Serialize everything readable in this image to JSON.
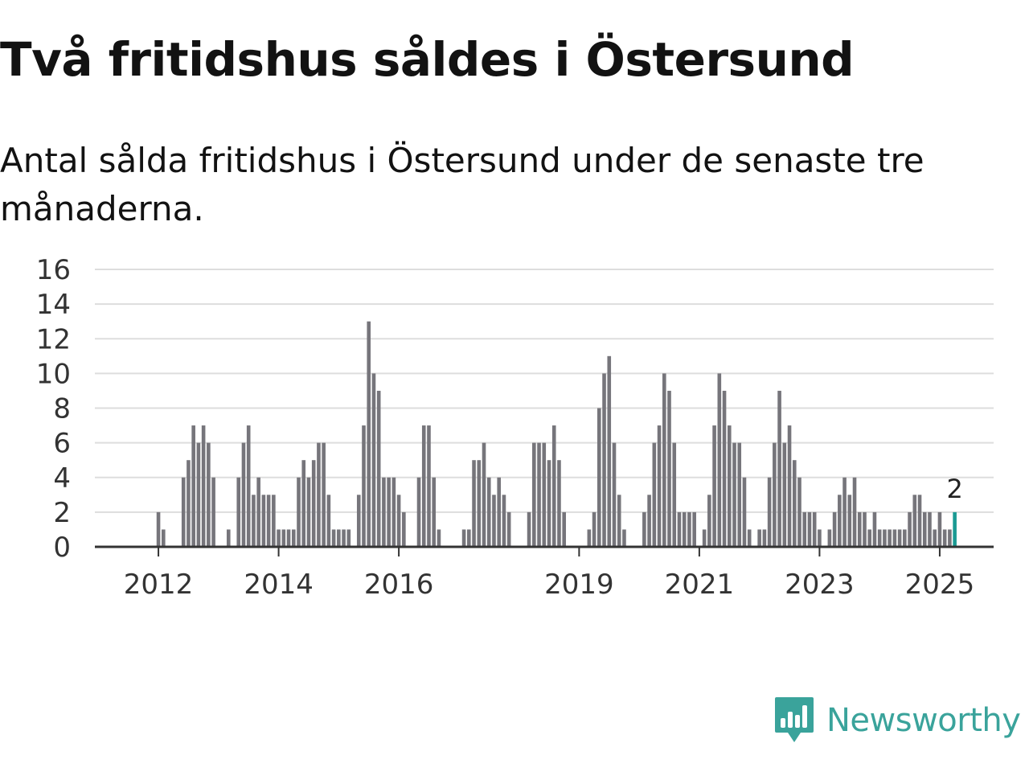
{
  "title": "Två fritidshus såldes i Östersund",
  "subtitle": "Antal sålda fritidshus i Östersund under de senaste tre månaderna.",
  "brand": {
    "name": "Newsworthy",
    "icon": "newsworthy-logo-icon",
    "color": "#3aa39b"
  },
  "colors": {
    "bar": "#76757b",
    "highlight": "#1a9a93"
  },
  "chart_data": {
    "type": "bar",
    "title": "Två fritidshus såldes i Östersund",
    "xlabel": "",
    "ylabel": "",
    "ylim": [
      0,
      16
    ],
    "yticks": [
      0,
      2,
      4,
      6,
      8,
      10,
      12,
      14,
      16
    ],
    "grid": true,
    "start": "2011-01",
    "xticks": [
      {
        "label": "2012",
        "category": "2012-01"
      },
      {
        "label": "2014",
        "category": "2014-01"
      },
      {
        "label": "2016",
        "category": "2016-01"
      },
      {
        "label": "2019",
        "category": "2019-01"
      },
      {
        "label": "2021",
        "category": "2021-01"
      },
      {
        "label": "2023",
        "category": "2023-01"
      },
      {
        "label": "2025",
        "category": "2025-01"
      }
    ],
    "values": [
      0,
      0,
      0,
      0,
      0,
      0,
      0,
      0,
      0,
      0,
      0,
      0,
      2,
      1,
      0,
      0,
      0,
      4,
      5,
      7,
      6,
      7,
      6,
      4,
      0,
      0,
      1,
      0,
      4,
      6,
      7,
      3,
      4,
      3,
      3,
      3,
      1,
      1,
      1,
      1,
      4,
      5,
      4,
      5,
      6,
      6,
      3,
      1,
      1,
      1,
      1,
      0,
      3,
      7,
      13,
      10,
      9,
      4,
      4,
      4,
      3,
      2,
      0,
      0,
      4,
      7,
      7,
      4,
      1,
      0,
      0,
      0,
      0,
      1,
      1,
      5,
      5,
      6,
      4,
      3,
      4,
      3,
      2,
      0,
      0,
      0,
      2,
      6,
      6,
      6,
      5,
      7,
      5,
      2,
      0,
      0,
      0,
      0,
      1,
      2,
      8,
      10,
      11,
      6,
      3,
      1,
      0,
      0,
      0,
      2,
      3,
      6,
      7,
      10,
      9,
      6,
      2,
      2,
      2,
      2,
      0,
      1,
      3,
      7,
      10,
      9,
      7,
      6,
      6,
      4,
      1,
      0,
      1,
      1,
      4,
      6,
      9,
      6,
      7,
      5,
      4,
      2,
      2,
      2,
      1,
      0,
      1,
      2,
      3,
      4,
      3,
      4,
      2,
      2,
      1,
      2,
      1,
      1,
      1,
      1,
      1,
      1,
      2,
      3,
      3,
      2,
      2,
      1,
      2,
      1,
      1,
      2
    ],
    "highlight_label": "2"
  }
}
